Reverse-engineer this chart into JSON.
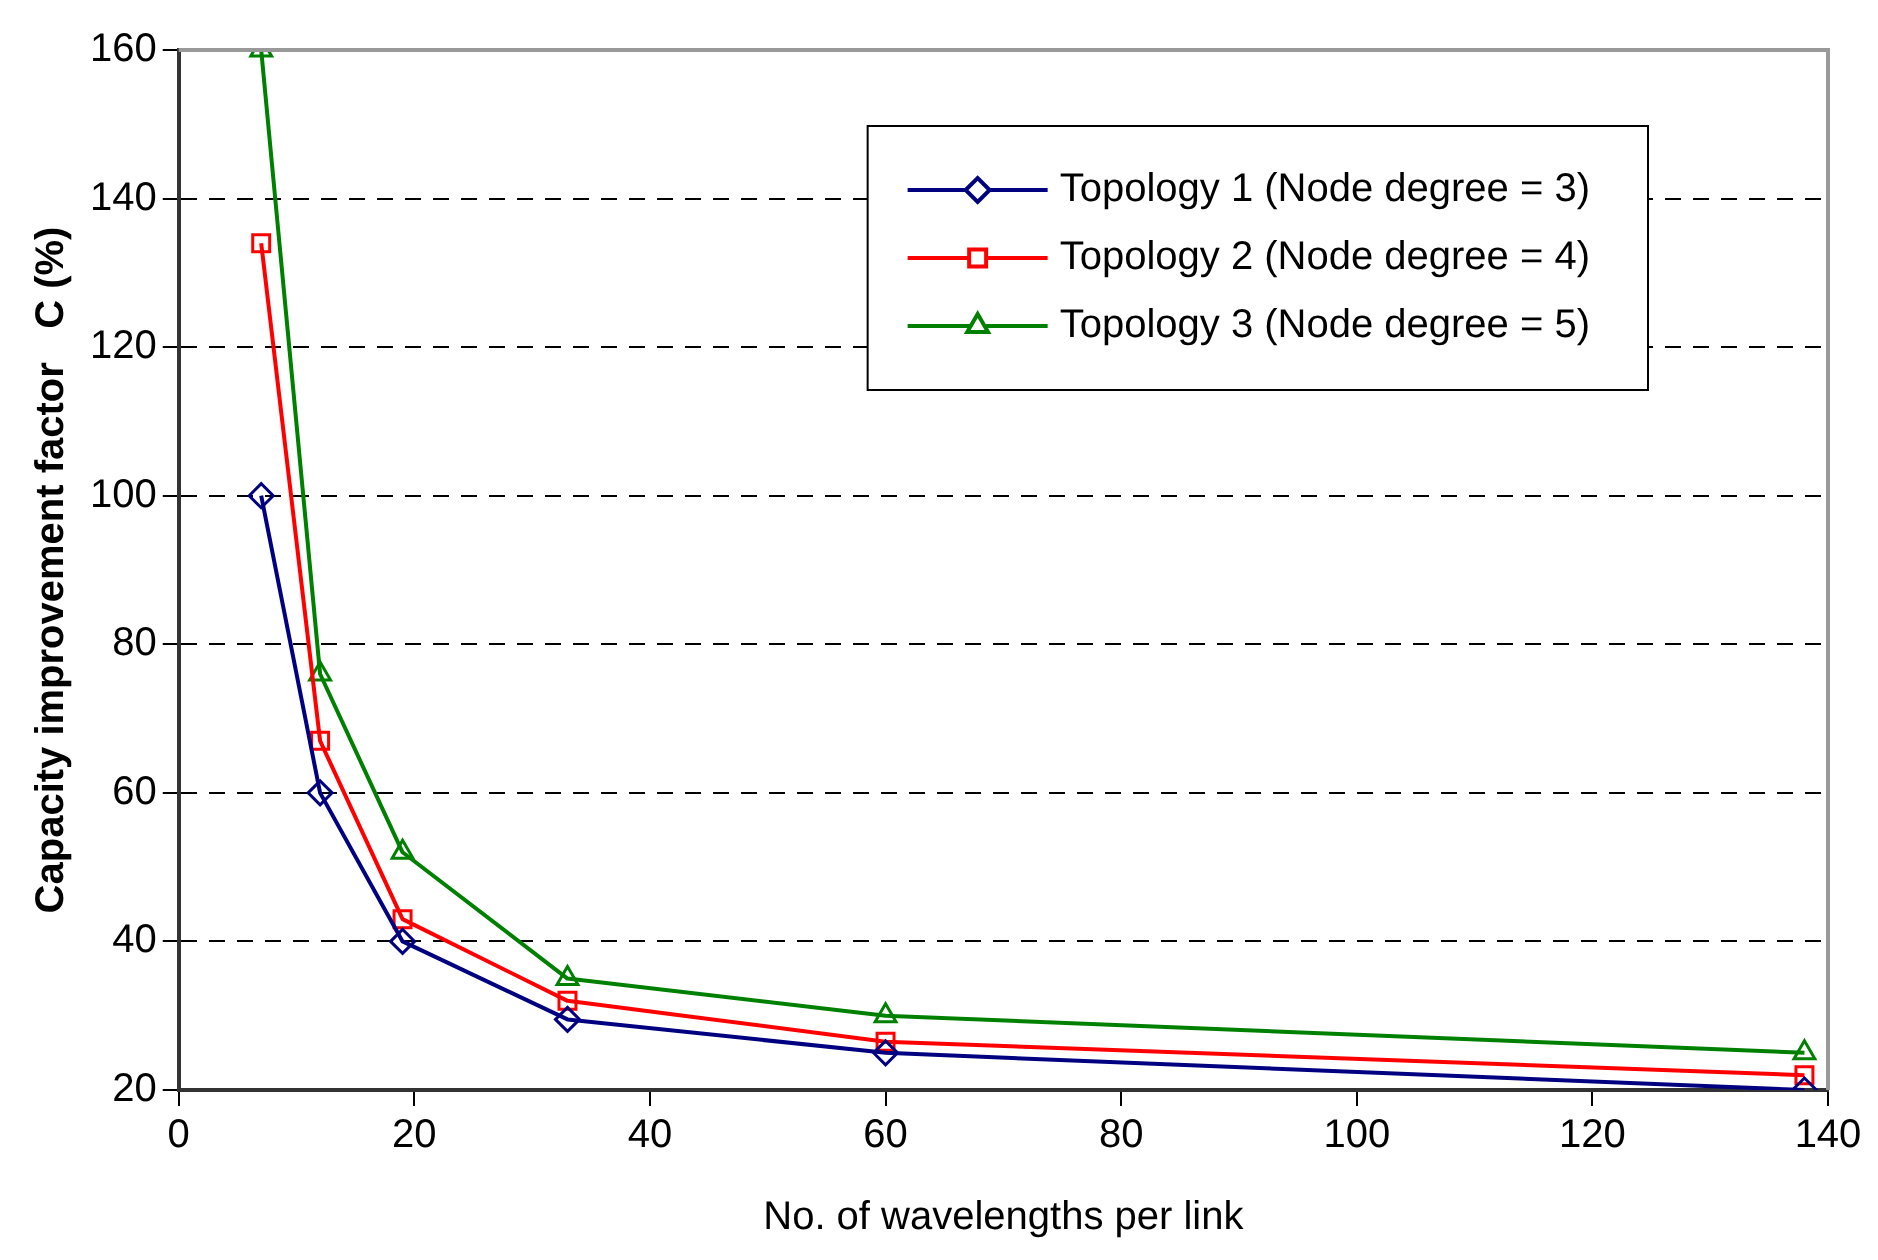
{
  "chart_data": {
    "type": "line",
    "xlabel": "No. of wavelengths per link",
    "ylabel": "Capacity improvement factor   C (%)",
    "x": [
      7,
      12,
      19,
      33,
      60,
      138
    ],
    "series": [
      {
        "name": "Topology 1 (Node degree = 3)",
        "color": "#000080",
        "marker": "diamond",
        "values": [
          100,
          60,
          40,
          29.5,
          25,
          20
        ]
      },
      {
        "name": "Topology 2 (Node degree = 4)",
        "color": "#ff0000",
        "marker": "square",
        "values": [
          134,
          67,
          43,
          32,
          26.5,
          22
        ]
      },
      {
        "name": "Topology 3 (Node degree = 5)",
        "color": "#008000",
        "marker": "triangle",
        "values": [
          160,
          76,
          52,
          35,
          30,
          25
        ]
      }
    ],
    "xlim": [
      0,
      140
    ],
    "xticks": [
      0,
      20,
      40,
      60,
      80,
      100,
      120,
      140
    ],
    "ylim": [
      20,
      160
    ],
    "yticks": [
      20,
      40,
      60,
      80,
      100,
      120,
      140,
      160
    ],
    "grid": "y",
    "legend": "top right",
    "line_style": "solid"
  }
}
